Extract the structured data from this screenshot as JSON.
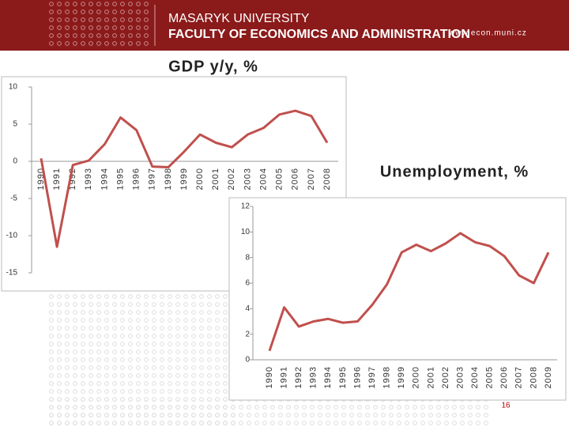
{
  "header": {
    "university": "MASARYK UNIVERSITY",
    "faculty": "FACULTY OF ECONOMICS AND ADMINISTRATION",
    "url": "www.econ.muni.cz"
  },
  "footer": {
    "page": "16"
  },
  "chart_data": [
    {
      "type": "line",
      "title": "GDP y/y, %",
      "categories": [
        "1990",
        "1991",
        "1992",
        "1993",
        "1994",
        "1995",
        "1996",
        "1997",
        "1998",
        "1999",
        "2000",
        "2001",
        "2002",
        "2003",
        "2004",
        "2005",
        "2006",
        "2007",
        "2008"
      ],
      "values": [
        0.4,
        -11.5,
        -0.5,
        0.1,
        2.3,
        5.9,
        4.2,
        -0.7,
        -0.8,
        1.3,
        3.6,
        2.5,
        1.9,
        3.6,
        4.5,
        6.3,
        6.8,
        6.1,
        2.5
      ],
      "color": "#c0504d",
      "ylim": [
        -15,
        10
      ],
      "yticks": [
        -15,
        -10,
        -5,
        0,
        5,
        10
      ],
      "grid": false
    },
    {
      "type": "line",
      "title": "Unemployment, %",
      "categories": [
        "1990",
        "1991",
        "1992",
        "1993",
        "1994",
        "1995",
        "1996",
        "1997",
        "1998",
        "1999",
        "2000",
        "2001",
        "2002",
        "2003",
        "2004",
        "2005",
        "2006",
        "2007",
        "2008",
        "2009"
      ],
      "values": [
        0.7,
        4.1,
        2.6,
        3.0,
        3.2,
        2.9,
        3.0,
        4.3,
        5.9,
        8.4,
        9.0,
        8.5,
        9.1,
        9.9,
        9.2,
        8.9,
        8.1,
        6.6,
        6.0,
        8.4
      ],
      "color": "#c0504d",
      "ylim": [
        0,
        12
      ],
      "yticks": [
        0,
        2,
        4,
        6,
        8,
        10,
        12
      ],
      "grid": false
    }
  ]
}
